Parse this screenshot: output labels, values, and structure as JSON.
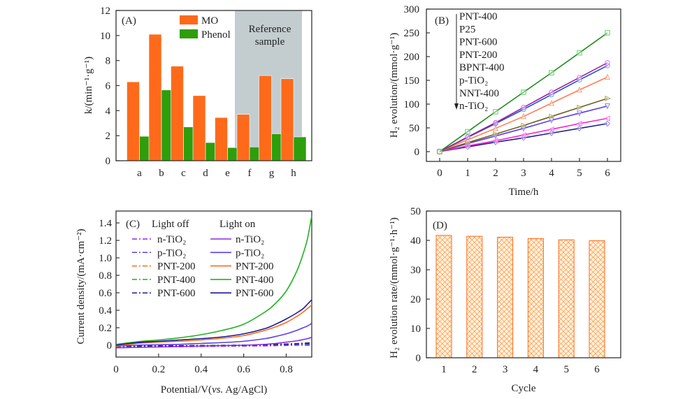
{
  "chart_data": [
    {
      "type": "bar",
      "panel_label": "(A)",
      "title": "",
      "xlabel": "",
      "ylabel": "k/(min⁻¹·g⁻¹)",
      "ylim": [
        0,
        12
      ],
      "yticks": [
        0,
        2,
        4,
        6,
        8,
        10,
        12
      ],
      "categories": [
        "a",
        "b",
        "c",
        "d",
        "e",
        "f",
        "g",
        "h"
      ],
      "series": [
        {
          "name": "MO",
          "color": "#ff6a1a",
          "values": [
            6.3,
            10.1,
            7.55,
            5.2,
            3.45,
            3.7,
            6.8,
            6.55
          ]
        },
        {
          "name": "Phenol",
          "color": "#2e9e0c",
          "values": [
            1.95,
            5.65,
            2.7,
            1.45,
            1.05,
            1.1,
            2.15,
            1.9
          ]
        }
      ],
      "annotation": {
        "text_lines": [
          "Reference",
          "sample"
        ],
        "categories": [
          "f",
          "g",
          "h"
        ],
        "color": "#c3cdd0"
      },
      "legend": "top-center"
    },
    {
      "type": "line",
      "panel_label": "(B)",
      "title": "",
      "xlabel": "Time/h",
      "ylabel": "H₂ evolution/(mmol·g⁻¹)",
      "xlim": [
        -0.5,
        6.5
      ],
      "ylim": [
        -35,
        300
      ],
      "xticks": [
        0,
        1,
        2,
        3,
        4,
        5,
        6
      ],
      "yticks": [
        0,
        50,
        100,
        150,
        200,
        250,
        300
      ],
      "x": [
        0,
        1,
        2,
        3,
        4,
        5,
        6
      ],
      "series": [
        {
          "name": "PNT-400",
          "color": "#1e8c1e",
          "marker": "square",
          "marker_color": "#5fcf5f",
          "values": [
            0,
            42,
            84,
            125,
            166,
            208,
            250
          ]
        },
        {
          "name": "P25",
          "color": "#a020a0",
          "marker": "circle",
          "marker_color": "#d070f0",
          "values": [
            0,
            31,
            61,
            93,
            125,
            156,
            187
          ]
        },
        {
          "name": "PNT-600",
          "color": "#1f4fd0",
          "marker": "hexagon",
          "marker_color": "#60a0f0",
          "values": [
            0,
            30,
            59,
            89,
            120,
            151,
            181
          ]
        },
        {
          "name": "PNT-200",
          "color": "#ff7f50",
          "marker": "triangle-up",
          "marker_color": "#ff9a80",
          "values": [
            0,
            25,
            49,
            74,
            102,
            130,
            157
          ]
        },
        {
          "name": "BPNT-400",
          "color": "#6b6020",
          "marker": "triangle-right",
          "marker_color": "#b0a850",
          "values": [
            0,
            19,
            37,
            55,
            74,
            93,
            112
          ]
        },
        {
          "name": "p-TiO₂",
          "color": "#5a3cf0",
          "marker": "triangle-down",
          "marker_color": "#9080f8",
          "values": [
            0,
            17,
            33,
            49,
            66,
            81,
            96
          ]
        },
        {
          "name": "NNT-400",
          "color": "#ff20d0",
          "marker": "triangle-left",
          "marker_color": "#ff70e8",
          "values": [
            0,
            12,
            23,
            35,
            47,
            59,
            70
          ]
        },
        {
          "name": "n-TiO₂",
          "color": "#20208a",
          "marker": "diamond",
          "marker_color": "#9080f8",
          "values": [
            0,
            10,
            20,
            29,
            39,
            49,
            59
          ]
        }
      ],
      "legend": "top-left",
      "legend_arrow": "down"
    },
    {
      "type": "line",
      "panel_label": "(C)",
      "title": "",
      "xlabel": "Potential/V(vs. Ag/AgCl)",
      "ylabel": "Current density/(mA·cm⁻²)",
      "xlim": [
        0,
        0.92
      ],
      "ylim": [
        -0.14,
        1.5
      ],
      "xticks": [
        0,
        0.2,
        0.4,
        0.6,
        0.8
      ],
      "yticks": [
        0,
        0.2,
        0.4,
        0.6,
        0.8,
        1.0,
        1.2,
        1.4
      ],
      "ytick_labels": [
        "0",
        "0.2",
        "0.4",
        "0.6",
        "0.8",
        "1.0",
        "1.2",
        "1.4"
      ],
      "legend_headers": [
        "Light off",
        "Light on"
      ],
      "x": [
        0,
        0.1,
        0.2,
        0.3,
        0.4,
        0.5,
        0.6,
        0.7,
        0.75,
        0.8,
        0.85,
        0.88,
        0.9,
        0.92
      ],
      "series": [
        {
          "name": "n-TiO₂",
          "condition": "Light on",
          "style": "solid",
          "color": "#8a2be2",
          "values": [
            -0.03,
            -0.025,
            -0.02,
            -0.015,
            -0.01,
            -0.005,
            0.0,
            0.01,
            0.02,
            0.035,
            0.05,
            0.065,
            0.075,
            0.09
          ]
        },
        {
          "name": "p-TiO₂",
          "condition": "Light on",
          "style": "solid",
          "color": "#5a3cf0",
          "values": [
            -0.01,
            0.0,
            0.005,
            0.01,
            0.02,
            0.03,
            0.045,
            0.075,
            0.1,
            0.13,
            0.17,
            0.2,
            0.22,
            0.25
          ]
        },
        {
          "name": "PNT-200",
          "condition": "Light on",
          "style": "solid",
          "color": "#ff6a1a",
          "values": [
            -0.01,
            0.02,
            0.035,
            0.045,
            0.06,
            0.08,
            0.11,
            0.17,
            0.21,
            0.26,
            0.33,
            0.38,
            0.42,
            0.46
          ]
        },
        {
          "name": "PNT-400",
          "condition": "Light on",
          "style": "solid",
          "color": "#1fb21f",
          "values": [
            0.01,
            0.04,
            0.06,
            0.085,
            0.12,
            0.17,
            0.24,
            0.38,
            0.48,
            0.62,
            0.85,
            1.05,
            1.22,
            1.48
          ]
        },
        {
          "name": "PNT-600",
          "condition": "Light on",
          "style": "solid",
          "color": "#1a1a9a",
          "values": [
            0.0,
            0.03,
            0.045,
            0.06,
            0.075,
            0.095,
            0.13,
            0.19,
            0.24,
            0.3,
            0.37,
            0.42,
            0.47,
            0.52
          ]
        },
        {
          "name": "n-TiO₂",
          "condition": "Light off",
          "style": "dashdot",
          "color": "#8a2be2",
          "values": [
            -0.03,
            -0.025,
            -0.02,
            -0.018,
            -0.015,
            -0.012,
            -0.01,
            -0.008,
            -0.005,
            -0.003,
            0.0,
            0.0,
            0.0,
            0.0
          ]
        },
        {
          "name": "p-TiO₂",
          "condition": "Light off",
          "style": "dashdot",
          "color": "#5a3cf0",
          "values": [
            -0.02,
            -0.015,
            -0.012,
            -0.01,
            -0.008,
            -0.006,
            -0.004,
            -0.002,
            0.0,
            0.002,
            0.005,
            0.008,
            0.01,
            0.012
          ]
        },
        {
          "name": "PNT-200",
          "condition": "Light off",
          "style": "dashdot",
          "color": "#ff6a1a",
          "values": [
            -0.015,
            -0.01,
            -0.008,
            -0.006,
            -0.004,
            -0.002,
            0.0,
            0.003,
            0.006,
            0.01,
            0.015,
            0.02,
            0.022,
            0.025
          ]
        },
        {
          "name": "PNT-400",
          "condition": "Light off",
          "style": "dashdot",
          "color": "#1fb21f",
          "values": [
            -0.01,
            -0.008,
            -0.006,
            -0.004,
            -0.002,
            0.0,
            0.002,
            0.006,
            0.01,
            0.015,
            0.02,
            0.025,
            0.028,
            0.03
          ]
        },
        {
          "name": "PNT-600",
          "condition": "Light off",
          "style": "dashdot",
          "color": "#1a1a9a",
          "values": [
            -0.012,
            -0.01,
            -0.008,
            -0.006,
            -0.004,
            -0.002,
            0.0,
            0.004,
            0.008,
            0.012,
            0.016,
            0.02,
            0.022,
            0.025
          ]
        }
      ],
      "legend": "top-left"
    },
    {
      "type": "bar",
      "panel_label": "(D)",
      "title": "",
      "xlabel": "Cycle",
      "ylabel": "H₂ evolution rate/(mmol·g⁻¹·h⁻¹)",
      "ylim": [
        0,
        50
      ],
      "yticks": [
        0,
        10,
        20,
        30,
        40,
        50
      ],
      "categories": [
        "1",
        "2",
        "3",
        "4",
        "5",
        "6"
      ],
      "values": [
        41.7,
        41.4,
        41.1,
        40.6,
        40.2,
        39.9
      ],
      "bar_color": "#ff6a1a",
      "fill_pattern": "crosshatch"
    }
  ]
}
